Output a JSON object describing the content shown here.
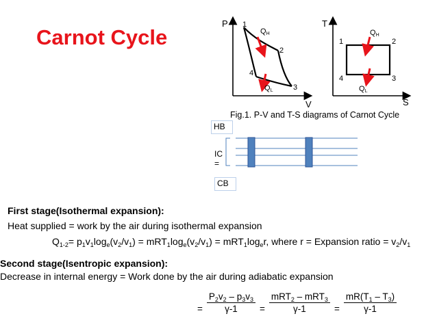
{
  "title": "Carnot Cycle",
  "figure": {
    "pv": {
      "y_axis": "P",
      "x_axis": "V",
      "points": [
        "1",
        "2",
        "3",
        "4"
      ],
      "q_high": "Q",
      "q_high_sub": "H",
      "q_low": "Q",
      "q_low_sub": "L"
    },
    "ts": {
      "y_axis": "T",
      "x_axis": "S",
      "points": [
        "1",
        "2",
        "3",
        "4"
      ],
      "q_high": "Q",
      "q_high_sub": "H",
      "q_low": "Q",
      "q_low_sub": "L"
    },
    "caption": "Fig.1. P-V and T-S diagrams of Carnot Cycle",
    "arrow_color": "#e8141b"
  },
  "engine": {
    "hb": "HB",
    "ic": "IC",
    "ic_eq": "=",
    "cb": "CB",
    "cylinder_color": "#4f81bd"
  },
  "stage1": {
    "heading": "First stage(Isothermal expansion):",
    "text": "Heat supplied = work  by the air during isothermal expansion",
    "eq": {
      "q": "Q",
      "q_sub": "1-2",
      "p1": "= p",
      "s1": "1",
      "v1": "v",
      "s2": "1",
      "log1": "log",
      "s3": "e",
      "arg1a": "(v",
      "s4": "2",
      "arg1b": "/v",
      "s5": "1",
      "arg1c": ") = mRT",
      "s6": "1",
      "log2": "log",
      "s7": "e",
      "arg2a": "(v",
      "s8": "2",
      "arg2b": "/v",
      "s9": "1",
      "arg2c": ") = mRT",
      "s10": "1",
      "log3": "log",
      "s11": "e",
      "tail": "r,    where r = Expansion ratio = v",
      "s12": "2",
      "tail2": "/v",
      "s13": "1"
    }
  },
  "stage2": {
    "heading": "Second stage(Isentropic expansion):",
    "text": "Decrease in  internal energy = Work done by the air during adiabatic expansion",
    "eq": {
      "eq1": "=",
      "f1_a": "P",
      "f1_s1": "2",
      "f1_b": "v",
      "f1_s2": "2",
      "f1_c": " – p",
      "f1_s3": "3",
      "f1_d": "v",
      "f1_s4": "3",
      "f1_den": "γ-1",
      "eq2": "=",
      "f2_a": "mRT",
      "f2_s1": "2",
      "f2_b": " – mRT",
      "f2_s2": "3",
      "f2_den": "γ-1",
      "eq3": "=",
      "f3_a": "mR(T",
      "f3_s1": "1",
      "f3_b": " – T",
      "f3_s2": "3",
      "f3_c": ")",
      "f3_den": "γ-1"
    }
  }
}
